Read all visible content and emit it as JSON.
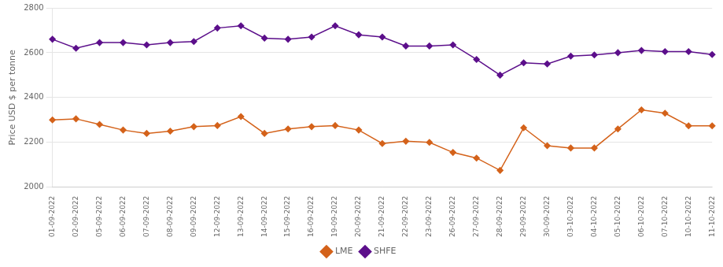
{
  "chart_data": {
    "type": "line",
    "y_label": "Price USD $ per tonne",
    "categories": [
      "01-09-2022",
      "02-09-2022",
      "05-09-2022",
      "06-09-2022",
      "07-09-2022",
      "08-09-2022",
      "09-09-2022",
      "12-09-2022",
      "13-09-2022",
      "14-09-2022",
      "15-09-2022",
      "16-09-2022",
      "19-09-2022",
      "20-09-2022",
      "21-09-2022",
      "22-09-2022",
      "23-09-2022",
      "26-09-2022",
      "27-09-2022",
      "28-09-2022",
      "29-09-2022",
      "30-09-2022",
      "03-10-2022",
      "04-10-2022",
      "05-10-2022",
      "06-10-2022",
      "07-10-2022",
      "10-10-2022",
      "11-10-2022"
    ],
    "series": [
      {
        "name": "LME",
        "color": "#d4621a",
        "marker": "diamond",
        "values": [
          2300,
          2305,
          2280,
          2255,
          2240,
          2250,
          2270,
          2275,
          2315,
          2240,
          2260,
          2270,
          2275,
          2255,
          2195,
          2205,
          2200,
          2155,
          2130,
          2075,
          2265,
          2185,
          2175,
          2175,
          2260,
          2345,
          2330,
          2274,
          2274
        ]
      },
      {
        "name": "SHFE",
        "color": "#5c0f8b",
        "marker": "diamond",
        "values": [
          2660,
          2620,
          2645,
          2645,
          2635,
          2645,
          2650,
          2710,
          2720,
          2665,
          2660,
          2670,
          2720,
          2680,
          2670,
          2630,
          2630,
          2635,
          2570,
          2500,
          2555,
          2550,
          2585,
          2590,
          2600,
          2610,
          2605,
          2605,
          2592
        ]
      }
    ],
    "ylim": [
      2000,
      2800
    ],
    "yticks": [
      2000,
      2200,
      2400,
      2600,
      2800
    ],
    "grid": true,
    "legend": "bottom"
  }
}
